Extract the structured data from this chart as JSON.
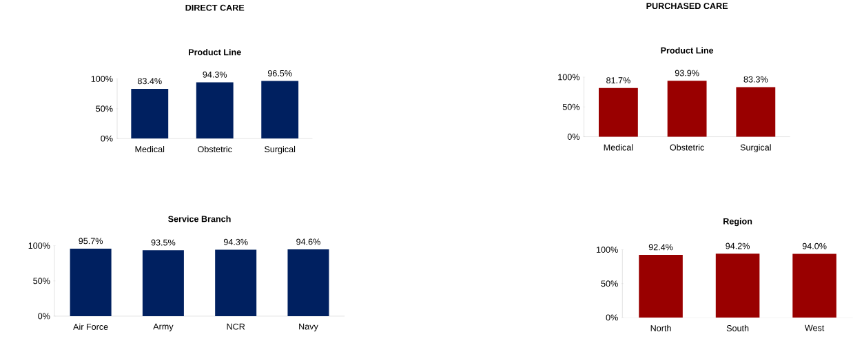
{
  "chart_data": [
    {
      "type": "bar",
      "title": "Product Line",
      "annotations": [
        "DIRECT CARE"
      ],
      "categories": [
        "Medical",
        "Obstetric",
        "Surgical"
      ],
      "values": [
        83.4,
        94.3,
        96.5
      ],
      "value_labels": [
        "83.4%",
        "94.3%",
        "96.5%"
      ],
      "color": "#002060",
      "ylim": [
        0,
        100
      ],
      "yticks": [
        {
          "value": 0,
          "label": "0%"
        },
        {
          "value": 50,
          "label": "50%"
        },
        {
          "value": 100,
          "label": "100%"
        }
      ]
    },
    {
      "type": "bar",
      "title": "Product Line",
      "annotations": [
        "PURCHASED CARE"
      ],
      "categories": [
        "Medical",
        "Obstetric",
        "Surgical"
      ],
      "values": [
        81.7,
        93.9,
        83.3
      ],
      "value_labels": [
        "81.7%",
        "93.9%",
        "83.3%"
      ],
      "color": "#990000",
      "ylim": [
        0,
        100
      ],
      "yticks": [
        {
          "value": 0,
          "label": "0%"
        },
        {
          "value": 50,
          "label": "50%"
        },
        {
          "value": 100,
          "label": "100%"
        }
      ]
    },
    {
      "type": "bar",
      "title": "Service Branch",
      "categories": [
        "Air Force",
        "Army",
        "NCR",
        "Navy"
      ],
      "values": [
        95.7,
        93.5,
        94.3,
        94.6
      ],
      "value_labels": [
        "95.7%",
        "93.5%",
        "94.3%",
        "94.6%"
      ],
      "color": "#002060",
      "ylim": [
        0,
        100
      ],
      "yticks": [
        {
          "value": 0,
          "label": "0%"
        },
        {
          "value": 50,
          "label": "50%"
        },
        {
          "value": 100,
          "label": "100%"
        }
      ]
    },
    {
      "type": "bar",
      "title": "Region",
      "categories": [
        "North",
        "South",
        "West"
      ],
      "values": [
        92.4,
        94.2,
        94.0
      ],
      "value_labels": [
        "92.4%",
        "94.2%",
        "94.0%"
      ],
      "color": "#990000",
      "ylim": [
        0,
        100
      ],
      "yticks": [
        {
          "value": 0,
          "label": "0%"
        },
        {
          "value": 50,
          "label": "50%"
        },
        {
          "value": 100,
          "label": "100%"
        }
      ]
    }
  ]
}
